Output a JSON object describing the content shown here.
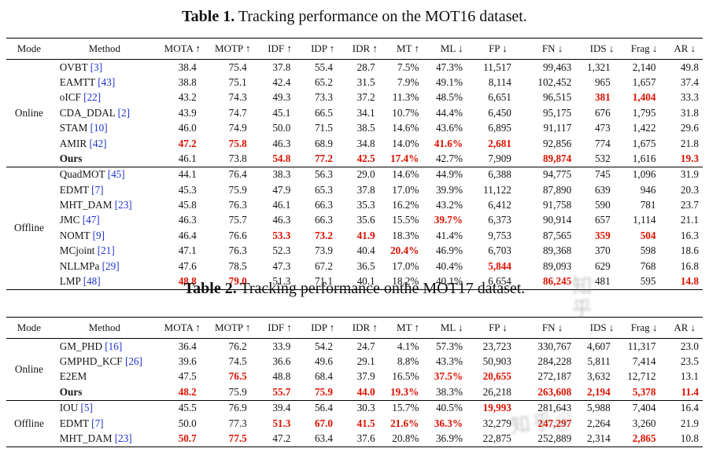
{
  "colors": {
    "red_highlight": "#dd1100",
    "citation_blue": "#2033cc",
    "text": "#151515"
  },
  "watermark": {
    "side_text": "知乎",
    "bottom_text": "知乎@"
  },
  "tables": [
    {
      "caption_label": "Table 1.",
      "caption_text": " Tracking performance on the MOT16 dataset.",
      "columns": [
        "Mode",
        "Method",
        "MOTA ↑",
        "MOTP ↑",
        "IDF ↑",
        "IDP ↑",
        "IDR ↑",
        "MT ↑",
        "ML ↓",
        "FP ↓",
        "FN ↓",
        "IDS ↓",
        "Frag ↓",
        "AR ↓"
      ],
      "sections": [
        {
          "mode": "Online",
          "rows": [
            {
              "method": "OVBT",
              "cite": "[3]",
              "bold": false,
              "cells": [
                "38.4",
                "75.4",
                "37.8",
                "55.4",
                "28.7",
                "7.5%",
                "47.3%",
                "11,517",
                "99,463",
                "1,321",
                "2,140",
                "49.8"
              ],
              "red": []
            },
            {
              "method": "EAMTT",
              "cite": "[43]",
              "bold": false,
              "cells": [
                "38.8",
                "75.1",
                "42.4",
                "65.2",
                "31.5",
                "7.9%",
                "49.1%",
                "8,114",
                "102,452",
                "965",
                "1,657",
                "37.4"
              ],
              "red": []
            },
            {
              "method": "oICF",
              "cite": "[22]",
              "bold": false,
              "cells": [
                "43.2",
                "74.3",
                "49.3",
                "73.3",
                "37.2",
                "11.3%",
                "48.5%",
                "6,651",
                "96,515",
                "381",
                "1,404",
                "33.3"
              ],
              "red": [
                9,
                10
              ]
            },
            {
              "method": "CDA_DDAL",
              "cite": "[2]",
              "bold": false,
              "cells": [
                "43.9",
                "74.7",
                "45.1",
                "66.5",
                "34.1",
                "10.7%",
                "44.4%",
                "6,450",
                "95,175",
                "676",
                "1,795",
                "31.8"
              ],
              "red": []
            },
            {
              "method": "STAM",
              "cite": "[10]",
              "bold": false,
              "cells": [
                "46.0",
                "74.9",
                "50.0",
                "71.5",
                "38.5",
                "14.6%",
                "43.6%",
                "6,895",
                "91,117",
                "473",
                "1,422",
                "29.6"
              ],
              "red": []
            },
            {
              "method": "AMIR",
              "cite": "[42]",
              "bold": false,
              "cells": [
                "47.2",
                "75.8",
                "46.3",
                "68.9",
                "34.8",
                "14.0%",
                "41.6%",
                "2,681",
                "92,856",
                "774",
                "1,675",
                "21.8"
              ],
              "red": [
                0,
                1,
                6,
                7
              ]
            },
            {
              "method": "Ours",
              "cite": "",
              "bold": true,
              "cells": [
                "46.1",
                "73.8",
                "54.8",
                "77.2",
                "42.5",
                "17.4%",
                "42.7%",
                "7,909",
                "89,874",
                "532",
                "1,616",
                "19.3"
              ],
              "red": [
                2,
                3,
                4,
                5,
                8,
                11
              ]
            }
          ]
        },
        {
          "mode": "Offline",
          "rows": [
            {
              "method": "QuadMOT",
              "cite": "[45]",
              "bold": false,
              "cells": [
                "44.1",
                "76.4",
                "38.3",
                "56.3",
                "29.0",
                "14.6%",
                "44.9%",
                "6,388",
                "94,775",
                "745",
                "1,096",
                "31.9"
              ],
              "red": []
            },
            {
              "method": "EDMT",
              "cite": "[7]",
              "bold": false,
              "cells": [
                "45.3",
                "75.9",
                "47.9",
                "65.3",
                "37.8",
                "17.0%",
                "39.9%",
                "11,122",
                "87,890",
                "639",
                "946",
                "20.3"
              ],
              "red": []
            },
            {
              "method": "MHT_DAM",
              "cite": "[23]",
              "bold": false,
              "cells": [
                "45.8",
                "76.3",
                "46.1",
                "66.3",
                "35.3",
                "16.2%",
                "43.2%",
                "6,412",
                "91,758",
                "590",
                "781",
                "23.7"
              ],
              "red": []
            },
            {
              "method": "JMC",
              "cite": "[47]",
              "bold": false,
              "cells": [
                "46.3",
                "75.7",
                "46.3",
                "66.3",
                "35.6",
                "15.5%",
                "39.7%",
                "6,373",
                "90,914",
                "657",
                "1,114",
                "21.1"
              ],
              "red": [
                6
              ]
            },
            {
              "method": "NOMT",
              "cite": "[9]",
              "bold": false,
              "cells": [
                "46.4",
                "76.6",
                "53.3",
                "73.2",
                "41.9",
                "18.3%",
                "41.4%",
                "9,753",
                "87,565",
                "359",
                "504",
                "16.3"
              ],
              "red": [
                2,
                3,
                4,
                9,
                10
              ]
            },
            {
              "method": "MCjoint",
              "cite": "[21]",
              "bold": false,
              "cells": [
                "47.1",
                "76.3",
                "52.3",
                "73.9",
                "40.4",
                "20.4%",
                "46.9%",
                "6,703",
                "89,368",
                "370",
                "598",
                "18.6"
              ],
              "red": [
                5
              ]
            },
            {
              "method": "NLLMPa",
              "cite": "[29]",
              "bold": false,
              "cells": [
                "47.6",
                "78.5",
                "47.3",
                "67.2",
                "36.5",
                "17.0%",
                "40.4%",
                "5,844",
                "89,093",
                "629",
                "768",
                "16.8"
              ],
              "red": [
                7
              ]
            },
            {
              "method": "LMP",
              "cite": "[48]",
              "bold": false,
              "cells": [
                "48.8",
                "79.0",
                "51.3",
                "71.1",
                "40.1",
                "18.2%",
                "40.1%",
                "6,654",
                "86,245",
                "481",
                "595",
                "14.8"
              ],
              "red": [
                0,
                1,
                8,
                11
              ]
            }
          ]
        }
      ]
    },
    {
      "caption_label": "Table 2.",
      "caption_text": " Tracking performance onthe MOT17 dataset.",
      "columns": [
        "Mode",
        "Method",
        "MOTA ↑",
        "MOTP ↑",
        "IDF ↑",
        "IDP ↑",
        "IDR ↑",
        "MT ↑",
        "ML ↓",
        "FP ↓",
        "FN ↓",
        "IDS ↓",
        "Frag ↓",
        "AR ↓"
      ],
      "sections": [
        {
          "mode": "Online",
          "rows": [
            {
              "method": "GM_PHD",
              "cite": "[16]",
              "bold": false,
              "cells": [
                "36.4",
                "76.2",
                "33.9",
                "54.2",
                "24.7",
                "4.1%",
                "57.3%",
                "23,723",
                "330,767",
                "4,607",
                "11,317",
                "23.0"
              ],
              "red": []
            },
            {
              "method": "GMPHD_KCF",
              "cite": "[26]",
              "bold": false,
              "cells": [
                "39.6",
                "74.5",
                "36.6",
                "49.6",
                "29.1",
                "8.8%",
                "43.3%",
                "50,903",
                "284,228",
                "5,811",
                "7,414",
                "23.5"
              ],
              "red": []
            },
            {
              "method": "E2EM",
              "cite": "",
              "bold": false,
              "cells": [
                "47.5",
                "76.5",
                "48.8",
                "68.4",
                "37.9",
                "16.5%",
                "37.5%",
                "20,655",
                "272,187",
                "3,632",
                "12,712",
                "13.1"
              ],
              "red": [
                1,
                6,
                7
              ]
            },
            {
              "method": "Ours",
              "cite": "",
              "bold": true,
              "cells": [
                "48.2",
                "75.9",
                "55.7",
                "75.9",
                "44.0",
                "19.3%",
                "38.3%",
                "26,218",
                "263,608",
                "2,194",
                "5,378",
                "11.4"
              ],
              "red": [
                0,
                2,
                3,
                4,
                5,
                8,
                9,
                10,
                11
              ]
            }
          ]
        },
        {
          "mode": "Offline",
          "rows": [
            {
              "method": "IOU",
              "cite": "[5]",
              "bold": false,
              "cells": [
                "45.5",
                "76.9",
                "39.4",
                "56.4",
                "30.3",
                "15.7%",
                "40.5%",
                "19,993",
                "281,643",
                "5,988",
                "7,404",
                "16.4"
              ],
              "red": [
                7
              ]
            },
            {
              "method": "EDMT",
              "cite": "[7]",
              "bold": false,
              "cells": [
                "50.0",
                "77.3",
                "51.3",
                "67.0",
                "41.5",
                "21.6%",
                "36.3%",
                "32,279",
                "247,297",
                "2,264",
                "3,260",
                "21.9"
              ],
              "red": [
                2,
                3,
                4,
                5,
                6,
                8
              ]
            },
            {
              "method": "MHT_DAM",
              "cite": "[23]",
              "bold": false,
              "cells": [
                "50.7",
                "77.5",
                "47.2",
                "63.4",
                "37.6",
                "20.8%",
                "36.9%",
                "22,875",
                "252,889",
                "2,314",
                "2,865",
                "10.8"
              ],
              "red": [
                0,
                1,
                10
              ]
            }
          ]
        }
      ]
    }
  ]
}
